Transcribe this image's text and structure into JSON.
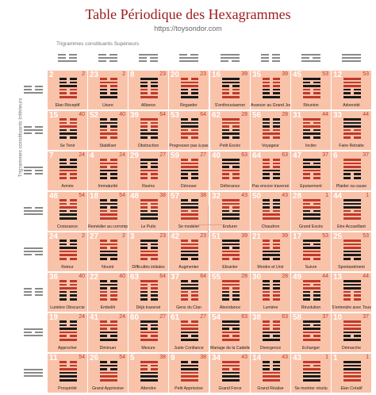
{
  "header": {
    "title": "Table Périodique des Hexagrammes",
    "subtitle": "https://toysondor.com",
    "upper_label": "Trigrammes constituants Supérieurs",
    "lower_label": "Trigrammes constituants Inférieurs"
  },
  "colors": {
    "cell": "#f9c3aa",
    "line_dark": "#1a1a1a",
    "line_red": "#c0392b",
    "trigram": "#8a8a8a",
    "title": "#9b1b1b"
  },
  "trigrams": [
    [
      0,
      0,
      1
    ],
    [
      0,
      1,
      0
    ],
    [
      1,
      0,
      0
    ],
    [
      0,
      1,
      1
    ],
    [
      1,
      1,
      0
    ],
    [
      0,
      0,
      0
    ],
    [
      1,
      0,
      1
    ],
    [
      1,
      1,
      1
    ]
  ],
  "rows": [
    [
      {
        "n": "2",
        "a": "2",
        "name": "Elan Réceptif"
      },
      {
        "n": "23",
        "a": "2",
        "name": "Usure"
      },
      {
        "n": "8",
        "a": "23",
        "name": "Alliance"
      },
      {
        "n": "20",
        "a": "23",
        "name": "Regarder"
      },
      {
        "n": "16",
        "a": "39",
        "name": "S'enthousiasmer"
      },
      {
        "n": "35",
        "a": "39",
        "name": "Avancer au Grand Jour"
      },
      {
        "n": "45",
        "a": "53",
        "name": "Réunion"
      },
      {
        "n": "12",
        "a": "53",
        "name": "Adversité"
      }
    ],
    [
      {
        "n": "15",
        "a": "40",
        "name": "Se Tenir"
      },
      {
        "n": "52",
        "a": "40",
        "name": "Stabiliser"
      },
      {
        "n": "39",
        "a": "64",
        "name": "Obstruction"
      },
      {
        "n": "53",
        "a": "64",
        "name": "Progresser pas à pas"
      },
      {
        "n": "62",
        "a": "28",
        "name": "Petit Excès"
      },
      {
        "n": "56",
        "a": "28",
        "name": "Voyageur"
      },
      {
        "n": "31",
        "a": "44",
        "name": "Inciter"
      },
      {
        "n": "33",
        "a": "44",
        "name": "Faire Retraite"
      }
    ],
    [
      {
        "n": "7",
        "a": "24",
        "name": "Armée"
      },
      {
        "n": "4",
        "a": "24",
        "name": "Immaturité"
      },
      {
        "n": "29",
        "a": "27",
        "name": "Ravins"
      },
      {
        "n": "59",
        "a": "27",
        "name": "Dénouer"
      },
      {
        "n": "40",
        "a": "63",
        "name": "Délivrance"
      },
      {
        "n": "64",
        "a": "63",
        "name": "Pas encore traversé"
      },
      {
        "n": "47",
        "a": "37",
        "name": "Epuisement"
      },
      {
        "n": "6",
        "a": "37",
        "name": "Plaider sa cause"
      }
    ],
    [
      {
        "n": "46",
        "a": "54",
        "name": "Croissance"
      },
      {
        "n": "18",
        "a": "54",
        "name": "Remédier au corrompu"
      },
      {
        "n": "48",
        "a": "38",
        "name": "Le Puits"
      },
      {
        "n": "57",
        "a": "38",
        "name": "Se modeler"
      },
      {
        "n": "32",
        "a": "43",
        "name": "Endurer"
      },
      {
        "n": "50",
        "a": "43",
        "name": "Chaudron"
      },
      {
        "n": "28",
        "a": "1",
        "name": "Grand Excès"
      },
      {
        "n": "44",
        "a": "1",
        "name": "Etre Accueillant"
      }
    ],
    [
      {
        "n": "24",
        "a": "2",
        "name": "Retour"
      },
      {
        "n": "27",
        "a": "2",
        "name": "Nourrir"
      },
      {
        "n": "3",
        "a": "23",
        "name": "Difficultés initiales"
      },
      {
        "n": "42",
        "a": "23",
        "name": "Augmenter"
      },
      {
        "n": "51",
        "a": "39",
        "name": "Ebranler"
      },
      {
        "n": "21",
        "a": "39",
        "name": "Mordre et Unir"
      },
      {
        "n": "17",
        "a": "53",
        "name": "Suivre"
      },
      {
        "n": "25",
        "a": "53",
        "name": "Spontanément"
      }
    ],
    [
      {
        "n": "36",
        "a": "40",
        "name": "Lumière Obscurcie"
      },
      {
        "n": "22",
        "a": "40",
        "name": "Embellir"
      },
      {
        "n": "63",
        "a": "64",
        "name": "Déjà traversé"
      },
      {
        "n": "37",
        "a": "64",
        "name": "Gens du Clan"
      },
      {
        "n": "55",
        "a": "28",
        "name": "Abondance"
      },
      {
        "n": "30",
        "a": "28",
        "name": "Lumière"
      },
      {
        "n": "49",
        "a": "44",
        "name": "Révolution"
      },
      {
        "n": "13",
        "a": "44",
        "name": "S'entendre avec Tous"
      }
    ],
    [
      {
        "n": "19",
        "a": "24",
        "name": "Approcher"
      },
      {
        "n": "41",
        "a": "24",
        "name": "Diminuer"
      },
      {
        "n": "60",
        "a": "27",
        "name": "Mesure"
      },
      {
        "n": "61",
        "a": "27",
        "name": "Juste Confiance"
      },
      {
        "n": "54",
        "a": "63",
        "name": "Mariage de la Cadette"
      },
      {
        "n": "38",
        "a": "63",
        "name": "Divergence"
      },
      {
        "n": "58",
        "a": "37",
        "name": "Echanger"
      },
      {
        "n": "10",
        "a": "37",
        "name": "Démarche"
      }
    ],
    [
      {
        "n": "11",
        "a": "54",
        "name": "Prospérité"
      },
      {
        "n": "26",
        "a": "54",
        "name": "Grand Apprivoise"
      },
      {
        "n": "5",
        "a": "38",
        "name": "Attendre"
      },
      {
        "n": "9",
        "a": "38",
        "name": "Petit Apprivoise"
      },
      {
        "n": "34",
        "a": "43",
        "name": "Grand Force"
      },
      {
        "n": "14",
        "a": "43",
        "name": "Grand Réalise"
      },
      {
        "n": "43",
        "a": "1",
        "name": "Se montrer résolu"
      },
      {
        "n": "1",
        "a": "1",
        "name": "Elan Créatif"
      }
    ]
  ]
}
